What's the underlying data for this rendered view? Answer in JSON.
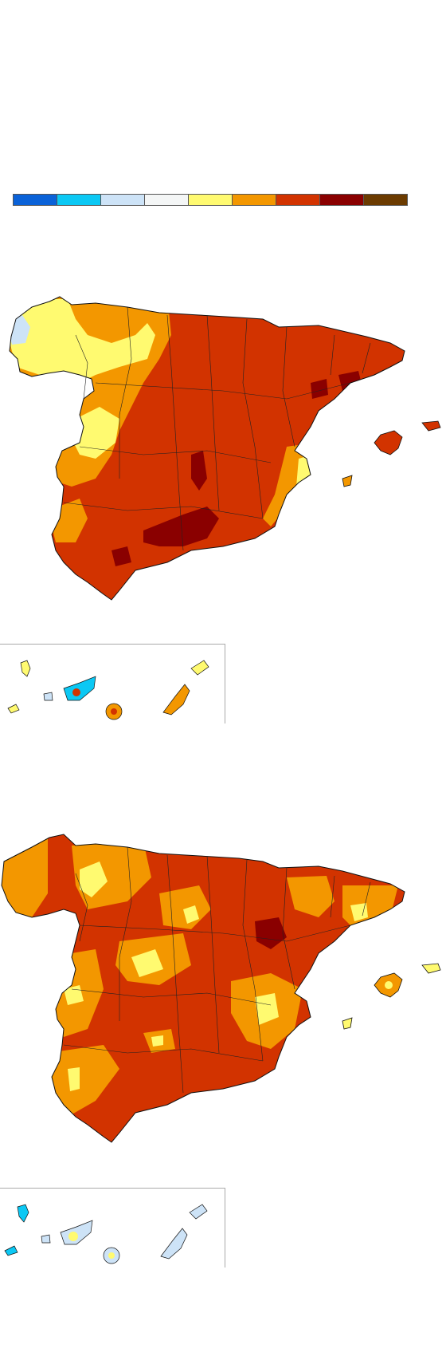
{
  "legend": {
    "colors": [
      "#0a62d8",
      "#0bc8f4",
      "#cde3f7",
      "#f4f6f6",
      "#fffa70",
      "#f39700",
      "#d23300",
      "#8a0000",
      "#6b3b00"
    ]
  },
  "palette": {
    "yellow": "#fffa70",
    "orange": "#f39700",
    "red": "#d23300",
    "dark_red": "#8a0000",
    "light_blue": "#cde3f7",
    "cyan": "#0bc8f4",
    "white": "#f4f6f6"
  },
  "maps": [
    {
      "panel": "top",
      "dominant_color": "#d23300"
    },
    {
      "panel": "bottom",
      "dominant_color": "#d23300"
    }
  ]
}
